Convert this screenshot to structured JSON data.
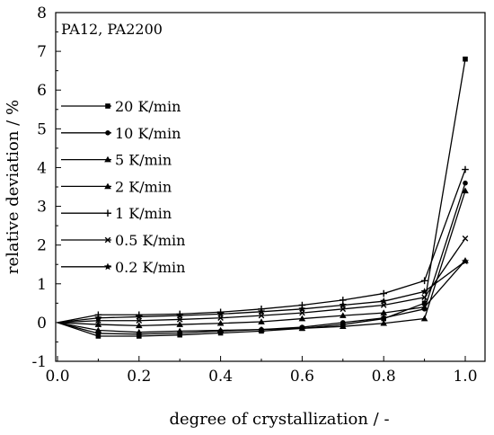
{
  "chart_data": {
    "type": "line",
    "annotation": "PA12, PA2200",
    "xlabel": "degree of crystallization / -",
    "ylabel": "relative deviation / %",
    "xlim": [
      0.0,
      1.0
    ],
    "ylim": [
      -1,
      8
    ],
    "xticks": [
      "0.0",
      "0.2",
      "0.4",
      "0.6",
      "0.8",
      "1.0"
    ],
    "xtick_values": [
      0.0,
      0.2,
      0.4,
      0.6,
      0.8,
      1.0
    ],
    "yticks": [
      "-1",
      "0",
      "1",
      "2",
      "3",
      "4",
      "5",
      "6",
      "7",
      "8"
    ],
    "ytick_values": [
      -1,
      0,
      1,
      2,
      3,
      4,
      5,
      6,
      7,
      8
    ],
    "grid": false,
    "legend_position": "left",
    "x": [
      0.0,
      0.1,
      0.2,
      0.3,
      0.4,
      0.5,
      0.6,
      0.7,
      0.8,
      0.9,
      1.0
    ],
    "series": [
      {
        "name": "20 K/min",
        "marker": "square",
        "values": [
          0,
          -0.35,
          -0.35,
          -0.32,
          -0.27,
          -0.22,
          -0.15,
          -0.05,
          0.1,
          0.5,
          6.8
        ]
      },
      {
        "name": "10 K/min",
        "marker": "circle",
        "values": [
          0,
          -0.28,
          -0.3,
          -0.27,
          -0.22,
          -0.18,
          -0.12,
          0.0,
          0.12,
          0.35,
          3.6
        ]
      },
      {
        "name": "5 K/min",
        "marker": "triangle",
        "values": [
          0,
          -0.2,
          -0.25,
          -0.22,
          -0.2,
          -0.18,
          -0.15,
          -0.1,
          -0.02,
          0.1,
          3.4
        ]
      },
      {
        "name": "2 K/min",
        "marker": "triangle",
        "values": [
          0,
          -0.05,
          -0.08,
          -0.05,
          -0.02,
          0.02,
          0.1,
          0.18,
          0.25,
          0.4,
          1.6
        ]
      },
      {
        "name": "1 K/min",
        "marker": "plus",
        "values": [
          0,
          0.2,
          0.2,
          0.22,
          0.27,
          0.35,
          0.45,
          0.58,
          0.75,
          1.08,
          3.95
        ]
      },
      {
        "name": "0.5 K/min",
        "marker": "x",
        "values": [
          0,
          0.05,
          0.05,
          0.08,
          0.12,
          0.18,
          0.25,
          0.35,
          0.45,
          0.65,
          2.17
        ]
      },
      {
        "name": "0.2 K/min",
        "marker": "star",
        "values": [
          0,
          0.12,
          0.15,
          0.18,
          0.22,
          0.28,
          0.35,
          0.45,
          0.55,
          0.8,
          1.58
        ]
      }
    ]
  }
}
